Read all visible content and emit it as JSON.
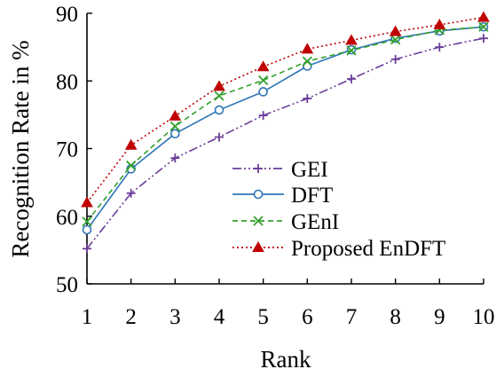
{
  "chart_data": {
    "type": "line",
    "xlabel": "Rank",
    "ylabel": "Recognition Rate in %",
    "x": [
      1,
      2,
      3,
      4,
      5,
      6,
      7,
      8,
      9,
      10
    ],
    "xlim": [
      1,
      10
    ],
    "ylim": [
      50,
      90
    ],
    "xticks": [
      "1",
      "2",
      "3",
      "4",
      "5",
      "6",
      "7",
      "8",
      "9",
      "10"
    ],
    "yticks": [
      50,
      60,
      70,
      80,
      90
    ],
    "grid": false,
    "legend_position": "bottom-right",
    "series": [
      {
        "name": "GEI",
        "values": [
          55.2,
          63.4,
          68.6,
          71.7,
          74.9,
          77.4,
          80.3,
          83.2,
          85.0,
          86.3
        ],
        "color": "#6a3d9a",
        "dash": "dash-dot-dot",
        "marker": "plus"
      },
      {
        "name": "DFT",
        "values": [
          58.0,
          67.0,
          72.2,
          75.7,
          78.4,
          82.2,
          84.6,
          86.3,
          87.4,
          88.0
        ],
        "color": "#2e75b6",
        "dash": "solid",
        "marker": "circle"
      },
      {
        "name": "GEnI",
        "values": [
          59.2,
          67.5,
          73.3,
          77.8,
          80.1,
          82.9,
          84.5,
          86.1,
          87.5,
          88.0
        ],
        "color": "#33a02c",
        "dash": "dashed",
        "marker": "x"
      },
      {
        "name": "Proposed EnDFT",
        "values": [
          62.0,
          70.5,
          74.8,
          79.2,
          82.1,
          84.7,
          86.0,
          87.3,
          88.3,
          89.4
        ],
        "color": "#c00000",
        "dash": "dotted",
        "marker": "triangle"
      }
    ]
  }
}
